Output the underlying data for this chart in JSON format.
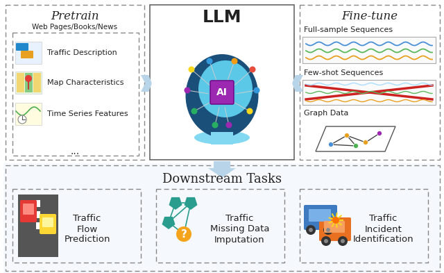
{
  "fig_width": 6.4,
  "fig_height": 3.93,
  "bg_color": "#ffffff",
  "title_pretrain": "Pretrain",
  "title_llm": "LLM",
  "title_finetune": "Fine-tune",
  "title_downstream": "Downstream Tasks",
  "pretrain_subtitle": "Web Pages/Books/News",
  "pretrain_items": [
    "Traffic Description",
    "Map Characteristics",
    "Time Series Features",
    "..."
  ],
  "finetune_items": [
    "Full-sample Sequences",
    "Few-shot Sequences",
    "Graph Data"
  ],
  "downstream_items": [
    "Traffic\nFlow\nPrediction",
    "Traffic\nMissing Data\nImputation",
    "Traffic\nIncident\nIdentification"
  ],
  "arrow_color": "#b8d4e8",
  "text_color": "#222222",
  "dash_color": "#888888"
}
